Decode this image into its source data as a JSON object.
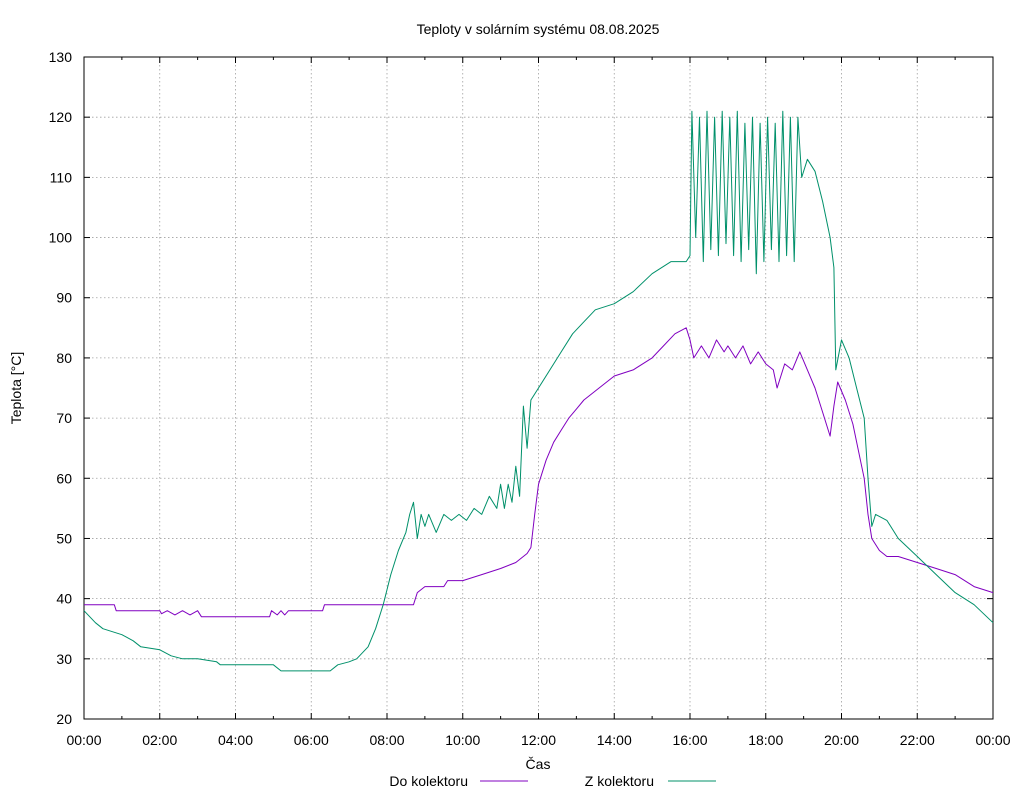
{
  "chart_data": {
    "type": "line",
    "title": "Teploty v solárním systému 08.08.2025",
    "xlabel": "Čas",
    "ylabel": "Teplota [°C]",
    "xlim": [
      0,
      24
    ],
    "ylim": [
      20,
      130
    ],
    "x_ticks": [
      "00:00",
      "02:00",
      "04:00",
      "06:00",
      "08:00",
      "10:00",
      "12:00",
      "14:00",
      "16:00",
      "18:00",
      "20:00",
      "22:00",
      "00:00"
    ],
    "y_ticks": [
      20,
      30,
      40,
      50,
      60,
      70,
      80,
      90,
      100,
      110,
      120,
      130
    ],
    "grid": true,
    "legend_placement": "bottom",
    "series": [
      {
        "name": "Do kolektoru",
        "color": "#8000c0",
        "points": [
          [
            0.0,
            39
          ],
          [
            0.8,
            39
          ],
          [
            0.85,
            38
          ],
          [
            2.0,
            38
          ],
          [
            2.05,
            37.5
          ],
          [
            2.2,
            38
          ],
          [
            2.4,
            37.3
          ],
          [
            2.6,
            38
          ],
          [
            2.8,
            37.3
          ],
          [
            3.0,
            38
          ],
          [
            3.1,
            37
          ],
          [
            4.0,
            37
          ],
          [
            4.9,
            37
          ],
          [
            4.95,
            38
          ],
          [
            5.1,
            37.3
          ],
          [
            5.2,
            38
          ],
          [
            5.3,
            37.3
          ],
          [
            5.4,
            38
          ],
          [
            6.3,
            38
          ],
          [
            6.35,
            39
          ],
          [
            8.0,
            39
          ],
          [
            8.7,
            39
          ],
          [
            8.8,
            41
          ],
          [
            9.0,
            42
          ],
          [
            9.5,
            42
          ],
          [
            9.6,
            43
          ],
          [
            10.0,
            43
          ],
          [
            10.5,
            44
          ],
          [
            11.0,
            45
          ],
          [
            11.4,
            46
          ],
          [
            11.7,
            47.5
          ],
          [
            11.8,
            48.5
          ],
          [
            11.9,
            54
          ],
          [
            12.0,
            59
          ],
          [
            12.2,
            63
          ],
          [
            12.4,
            66
          ],
          [
            12.6,
            68
          ],
          [
            12.8,
            70
          ],
          [
            13.0,
            71.5
          ],
          [
            13.2,
            73
          ],
          [
            13.5,
            74.5
          ],
          [
            13.8,
            76
          ],
          [
            14.0,
            77
          ],
          [
            14.5,
            78
          ],
          [
            15.0,
            80
          ],
          [
            15.3,
            82
          ],
          [
            15.6,
            84
          ],
          [
            15.9,
            85
          ],
          [
            16.0,
            83
          ],
          [
            16.1,
            80
          ],
          [
            16.3,
            82
          ],
          [
            16.5,
            80
          ],
          [
            16.7,
            83
          ],
          [
            16.9,
            81
          ],
          [
            17.0,
            82
          ],
          [
            17.2,
            80
          ],
          [
            17.4,
            82
          ],
          [
            17.6,
            79
          ],
          [
            17.8,
            81
          ],
          [
            18.0,
            79
          ],
          [
            18.2,
            78
          ],
          [
            18.3,
            75
          ],
          [
            18.5,
            79
          ],
          [
            18.7,
            78
          ],
          [
            18.9,
            81
          ],
          [
            19.1,
            78
          ],
          [
            19.3,
            75
          ],
          [
            19.5,
            71
          ],
          [
            19.7,
            67
          ],
          [
            19.8,
            72
          ],
          [
            19.9,
            76
          ],
          [
            20.1,
            73
          ],
          [
            20.3,
            69
          ],
          [
            20.5,
            63
          ],
          [
            20.6,
            60
          ],
          [
            20.7,
            54
          ],
          [
            20.8,
            50
          ],
          [
            21.0,
            48
          ],
          [
            21.2,
            47
          ],
          [
            21.5,
            47
          ],
          [
            22.0,
            46
          ],
          [
            22.5,
            45
          ],
          [
            23.0,
            44
          ],
          [
            23.5,
            42
          ],
          [
            24.0,
            41
          ]
        ]
      },
      {
        "name": "Z kolektoru",
        "color": "#00906a",
        "points": [
          [
            0.0,
            38
          ],
          [
            0.3,
            36
          ],
          [
            0.5,
            35
          ],
          [
            1.0,
            34
          ],
          [
            1.3,
            33
          ],
          [
            1.5,
            32
          ],
          [
            2.0,
            31.5
          ],
          [
            2.3,
            30.5
          ],
          [
            2.6,
            30
          ],
          [
            3.0,
            30
          ],
          [
            3.5,
            29.5
          ],
          [
            3.6,
            29
          ],
          [
            4.5,
            29
          ],
          [
            5.0,
            29
          ],
          [
            5.2,
            28
          ],
          [
            5.8,
            28
          ],
          [
            6.5,
            28
          ],
          [
            6.7,
            29
          ],
          [
            7.0,
            29.5
          ],
          [
            7.2,
            30
          ],
          [
            7.5,
            32
          ],
          [
            7.7,
            35
          ],
          [
            7.9,
            39
          ],
          [
            8.1,
            44
          ],
          [
            8.3,
            48
          ],
          [
            8.5,
            51
          ],
          [
            8.6,
            54
          ],
          [
            8.7,
            56
          ],
          [
            8.8,
            50
          ],
          [
            8.9,
            54
          ],
          [
            9.0,
            52
          ],
          [
            9.1,
            54
          ],
          [
            9.3,
            51
          ],
          [
            9.5,
            54
          ],
          [
            9.7,
            53
          ],
          [
            9.9,
            54
          ],
          [
            10.1,
            53
          ],
          [
            10.3,
            55
          ],
          [
            10.5,
            54
          ],
          [
            10.7,
            57
          ],
          [
            10.9,
            55
          ],
          [
            11.0,
            59
          ],
          [
            11.1,
            55
          ],
          [
            11.2,
            59
          ],
          [
            11.3,
            56
          ],
          [
            11.4,
            62
          ],
          [
            11.5,
            57
          ],
          [
            11.6,
            72
          ],
          [
            11.7,
            65
          ],
          [
            11.8,
            73
          ],
          [
            12.0,
            75
          ],
          [
            12.3,
            78
          ],
          [
            12.6,
            81
          ],
          [
            12.9,
            84
          ],
          [
            13.2,
            86
          ],
          [
            13.5,
            88
          ],
          [
            14.0,
            89
          ],
          [
            14.5,
            91
          ],
          [
            15.0,
            94
          ],
          [
            15.5,
            96
          ],
          [
            15.9,
            96
          ],
          [
            16.0,
            97
          ],
          [
            16.05,
            121
          ],
          [
            16.15,
            100
          ],
          [
            16.25,
            120
          ],
          [
            16.35,
            96
          ],
          [
            16.45,
            121
          ],
          [
            16.55,
            98
          ],
          [
            16.65,
            120
          ],
          [
            16.75,
            97
          ],
          [
            16.85,
            121
          ],
          [
            16.95,
            99
          ],
          [
            17.05,
            120
          ],
          [
            17.15,
            97
          ],
          [
            17.25,
            121
          ],
          [
            17.35,
            96
          ],
          [
            17.45,
            119
          ],
          [
            17.55,
            98
          ],
          [
            17.65,
            120
          ],
          [
            17.75,
            94
          ],
          [
            17.85,
            119
          ],
          [
            17.95,
            96
          ],
          [
            18.05,
            120
          ],
          [
            18.15,
            98
          ],
          [
            18.25,
            119
          ],
          [
            18.35,
            96
          ],
          [
            18.45,
            121
          ],
          [
            18.55,
            97
          ],
          [
            18.65,
            120
          ],
          [
            18.75,
            96
          ],
          [
            18.85,
            120
          ],
          [
            18.95,
            110
          ],
          [
            19.1,
            113
          ],
          [
            19.3,
            111
          ],
          [
            19.5,
            106
          ],
          [
            19.7,
            100
          ],
          [
            19.8,
            95
          ],
          [
            19.85,
            78
          ],
          [
            20.0,
            83
          ],
          [
            20.2,
            80
          ],
          [
            20.4,
            75
          ],
          [
            20.6,
            70
          ],
          [
            20.7,
            60
          ],
          [
            20.8,
            52
          ],
          [
            20.9,
            54
          ],
          [
            21.2,
            53
          ],
          [
            21.5,
            50
          ],
          [
            22.0,
            47
          ],
          [
            22.5,
            44
          ],
          [
            23.0,
            41
          ],
          [
            23.5,
            39
          ],
          [
            24.0,
            36
          ]
        ]
      }
    ]
  }
}
